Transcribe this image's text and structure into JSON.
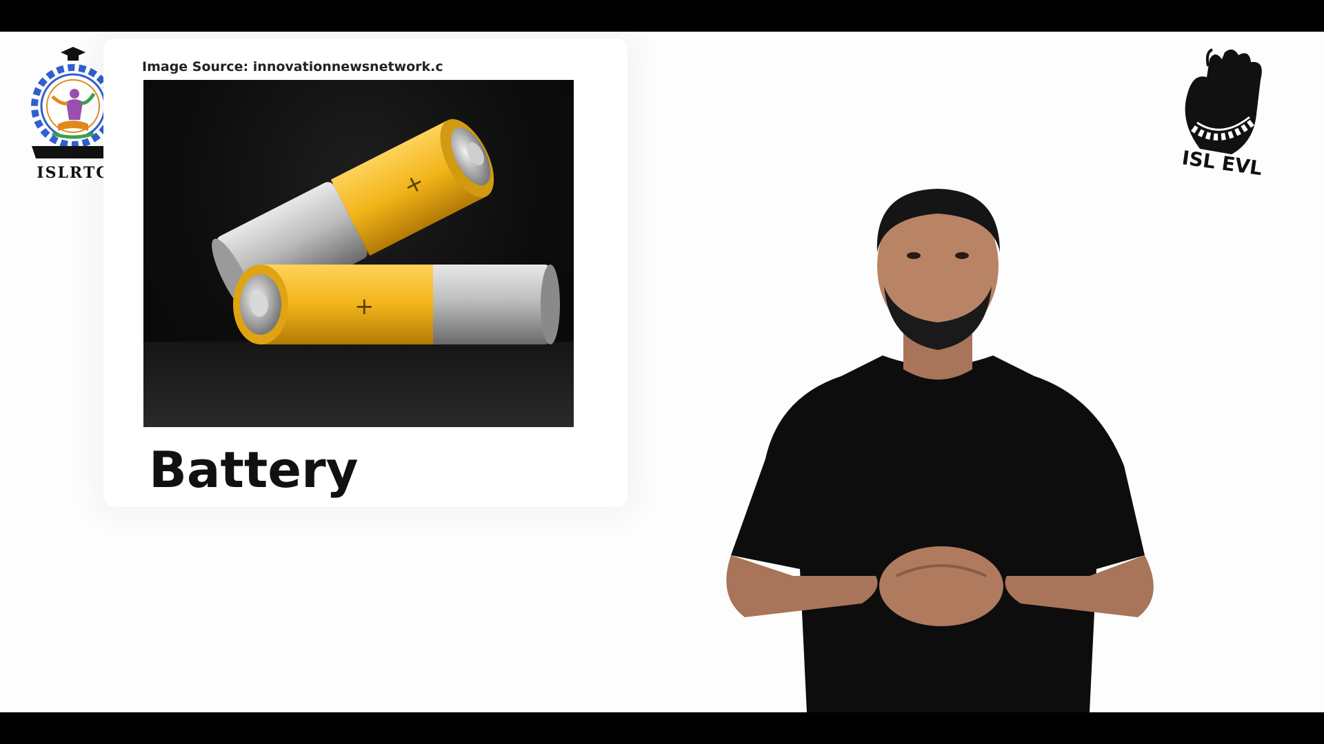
{
  "branding": {
    "left_logo_text": "ISLRTC",
    "right_logo_text": "ISL EVL"
  },
  "slide": {
    "image_source": "Image Source: innovationnewsnetwork.c",
    "word": "Battery"
  },
  "colors": {
    "background": "#fdfdfd",
    "letterbox": "#000000",
    "battery_yellow": "#f2b419",
    "battery_silver": "#c9c9c9",
    "shirt": "#0d0d0d"
  }
}
